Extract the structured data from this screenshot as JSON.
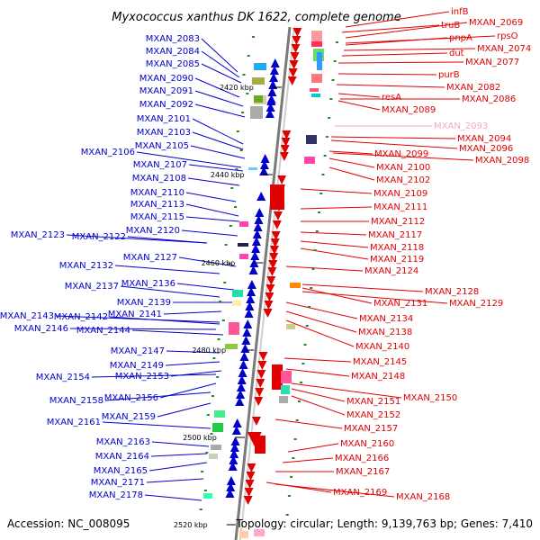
{
  "title": "Myxococcus xanthus DK 1622, complete genome",
  "footer": {
    "accession": "Accession: NC_008095",
    "topology": "Topology: circular; Length: 9,139,763 bp; Genes: 7,410"
  },
  "colors": {
    "left_genes": "#0000cc",
    "right_genes": "#e00000",
    "highlight_gene": "#f4a6c8",
    "axis": "#808080"
  },
  "kbp_marks": [
    "2420 kbp",
    "2440 kbp",
    "2460 kbp",
    "2480 kbp",
    "2500 kbp",
    "2520 kbp"
  ],
  "left_labels": [
    "MXAN_2083",
    "MXAN_2084",
    "MXAN_2085",
    "MXAN_2090",
    "MXAN_2091",
    "MXAN_2092",
    "MXAN_2101",
    "MXAN_2103",
    "MXAN_2105",
    "MXAN_2106",
    "MXAN_2107",
    "MXAN_2108",
    "MXAN_2110",
    "MXAN_2113",
    "MXAN_2115",
    "MXAN_2120",
    "MXAN_2123",
    "MXAN_2122",
    "MXAN_2127",
    "MXAN_2132",
    "MXAN_2136",
    "MXAN_2137",
    "MXAN_2139",
    "MXAN_2141",
    "MXAN_2143",
    "MXAN_2142",
    "MXAN_2146",
    "MXAN_2144",
    "MXAN_2147",
    "MXAN_2149",
    "MXAN_2153",
    "MXAN_2154",
    "MXAN_2156",
    "MXAN_2158",
    "MXAN_2159",
    "MXAN_2161",
    "MXAN_2163",
    "MXAN_2164",
    "MXAN_2165",
    "MXAN_2171",
    "MXAN_2178"
  ],
  "right_labels": [
    "infB",
    "truB",
    "MXAN_2069",
    "rpsO",
    "pnpA",
    "MXAN_2074",
    "dut",
    "MXAN_2077",
    "purB",
    "MXAN_2082",
    "resA",
    "MXAN_2086",
    "MXAN_2089",
    "MXAN_2093",
    "MXAN_2094",
    "MXAN_2096",
    "MXAN_2099",
    "MXAN_2098",
    "MXAN_2100",
    "MXAN_2102",
    "MXAN_2109",
    "MXAN_2111",
    "MXAN_2112",
    "MXAN_2117",
    "MXAN_2118",
    "MXAN_2119",
    "MXAN_2124",
    "MXAN_2128",
    "MXAN_2131",
    "MXAN_2129",
    "MXAN_2134",
    "MXAN_2138",
    "MXAN_2140",
    "MXAN_2145",
    "MXAN_2148",
    "MXAN_2150",
    "MXAN_2151",
    "MXAN_2152",
    "MXAN_2157",
    "MXAN_2160",
    "MXAN_2166",
    "MXAN_2167",
    "MXAN_2169",
    "MXAN_2168"
  ]
}
